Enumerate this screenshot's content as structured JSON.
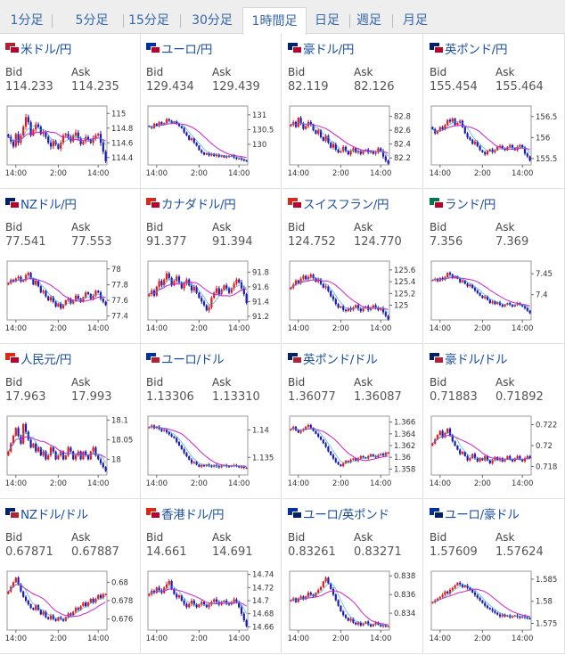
{
  "tabs": [
    {
      "label": "1分足",
      "active": false
    },
    {
      "label": "5分足",
      "active": false
    },
    {
      "label": "15分足",
      "active": false
    },
    {
      "label": "30分足",
      "active": false
    },
    {
      "label": "1時間足",
      "active": true
    },
    {
      "label": "日足",
      "active": false
    },
    {
      "label": "週足",
      "active": false
    },
    {
      "label": "月足",
      "active": false
    }
  ],
  "colors": {
    "up": "#e81818",
    "down": "#1a1ab8",
    "ma_slow": "#cc22cc",
    "ma_fast": "#2aa5d6",
    "link": "#1a4fa0"
  },
  "labels": {
    "bid": "Bid",
    "ask": "Ask"
  },
  "chart_data": [
    {
      "type": "candlestick",
      "pair": "米ドル/円",
      "flags": [
        "#b22234",
        "#bc002d"
      ],
      "bid": "114.233",
      "ask": "114.235",
      "x_ticks": [
        "14:00",
        "2:00",
        "14:00"
      ],
      "y_ticks": [
        "115",
        "114.8",
        "114.6",
        "114.4"
      ],
      "y_tick_values": [
        115,
        114.8,
        114.6,
        114.4
      ],
      "ylim": [
        114.3,
        115.1
      ],
      "close": [
        114.68,
        114.62,
        114.55,
        114.72,
        114.6,
        114.7,
        114.82,
        114.95,
        114.88,
        114.7,
        114.78,
        114.85,
        114.82,
        114.72,
        114.74,
        114.68,
        114.6,
        114.55,
        114.62,
        114.58,
        114.52,
        114.6,
        114.7,
        114.72,
        114.68,
        114.62,
        114.7,
        114.74,
        114.66,
        114.58,
        114.62,
        114.68,
        114.64,
        114.6,
        114.66,
        114.7,
        114.72,
        114.6,
        114.48,
        114.35
      ],
      "vol": 0.07
    },
    {
      "type": "candlestick",
      "pair": "ユーロ/円",
      "flags": [
        "#003399",
        "#bc002d"
      ],
      "bid": "129.434",
      "ask": "129.439",
      "x_ticks": [
        "14:00",
        "2:00",
        "14:00"
      ],
      "y_ticks": [
        "131",
        "130.5",
        "130"
      ],
      "y_tick_values": [
        131,
        130.5,
        130
      ],
      "ylim": [
        129.3,
        131.3
      ],
      "close": [
        130.6,
        130.55,
        130.7,
        130.62,
        130.75,
        130.68,
        130.72,
        130.85,
        130.8,
        130.72,
        130.78,
        130.7,
        130.62,
        130.55,
        130.4,
        130.3,
        130.15,
        130.2,
        130.05,
        129.95,
        129.8,
        129.72,
        129.65,
        129.7,
        129.62,
        129.68,
        129.6,
        129.65,
        129.58,
        129.62,
        129.55,
        129.6,
        129.58,
        129.62,
        129.55,
        129.5,
        129.52,
        129.48,
        129.45,
        129.43
      ],
      "vol": 0.08
    },
    {
      "type": "candlestick",
      "pair": "豪ドル/円",
      "flags": [
        "#012169",
        "#bc002d"
      ],
      "bid": "82.119",
      "ask": "82.126",
      "x_ticks": [
        "14:00",
        "2:00",
        "14:00"
      ],
      "y_ticks": [
        "82.8",
        "82.6",
        "82.4",
        "82.2"
      ],
      "y_tick_values": [
        82.8,
        82.6,
        82.4,
        82.2
      ],
      "ylim": [
        82.1,
        82.95
      ],
      "close": [
        82.68,
        82.72,
        82.65,
        82.78,
        82.7,
        82.62,
        82.66,
        82.72,
        82.68,
        82.6,
        82.55,
        82.6,
        82.5,
        82.45,
        82.52,
        82.42,
        82.35,
        82.4,
        82.32,
        82.28,
        82.3,
        82.36,
        82.3,
        82.25,
        82.3,
        82.34,
        82.28,
        82.3,
        82.26,
        82.3,
        82.32,
        82.28,
        82.3,
        82.26,
        82.28,
        82.34,
        82.3,
        82.22,
        82.16,
        82.12
      ],
      "vol": 0.05
    },
    {
      "type": "candlestick",
      "pair": "英ポンド/円",
      "flags": [
        "#012169",
        "#bc002d"
      ],
      "bid": "155.454",
      "ask": "155.464",
      "x_ticks": [
        "14:00",
        "2:00",
        "14:00"
      ],
      "y_ticks": [
        "156.5",
        "156",
        "155.5"
      ],
      "y_tick_values": [
        156.5,
        156,
        155.5
      ],
      "ylim": [
        155.35,
        156.75
      ],
      "close": [
        156.2,
        156.1,
        156.15,
        156.25,
        156.2,
        156.3,
        156.42,
        156.38,
        156.45,
        156.3,
        156.35,
        156.4,
        156.25,
        156.1,
        156.0,
        155.95,
        155.85,
        155.9,
        155.8,
        155.7,
        155.65,
        155.6,
        155.68,
        155.72,
        155.65,
        155.7,
        155.78,
        155.8,
        155.74,
        155.7,
        155.78,
        155.82,
        155.75,
        155.7,
        155.78,
        155.82,
        155.76,
        155.62,
        155.55,
        155.45
      ],
      "vol": 0.07
    },
    {
      "type": "candlestick",
      "pair": "NZドル/円",
      "flags": [
        "#012169",
        "#bc002d"
      ],
      "bid": "77.541",
      "ask": "77.553",
      "x_ticks": [
        "14:00",
        "2:00",
        "14:00"
      ],
      "y_ticks": [
        "78",
        "77.8",
        "77.6",
        "77.4"
      ],
      "y_tick_values": [
        78,
        77.8,
        77.6,
        77.4
      ],
      "ylim": [
        77.35,
        78.1
      ],
      "close": [
        77.82,
        77.86,
        77.84,
        77.88,
        77.9,
        77.84,
        77.86,
        77.92,
        77.95,
        77.88,
        77.8,
        77.85,
        77.78,
        77.7,
        77.72,
        77.65,
        77.6,
        77.64,
        77.58,
        77.52,
        77.56,
        77.5,
        77.54,
        77.6,
        77.62,
        77.56,
        77.6,
        77.66,
        77.62,
        77.58,
        77.64,
        77.7,
        77.68,
        77.62,
        77.66,
        77.72,
        77.7,
        77.62,
        77.58,
        77.54
      ],
      "vol": 0.04
    },
    {
      "type": "candlestick",
      "pair": "カナダドル/円",
      "flags": [
        "#d52b1e",
        "#bc002d"
      ],
      "bid": "91.377",
      "ask": "91.394",
      "x_ticks": [
        "14:00",
        "2:00",
        "14:00"
      ],
      "y_ticks": [
        "91.8",
        "91.6",
        "91.4",
        "91.2"
      ],
      "y_tick_values": [
        91.8,
        91.6,
        91.4,
        91.2
      ],
      "ylim": [
        91.15,
        91.95
      ],
      "close": [
        91.5,
        91.55,
        91.48,
        91.6,
        91.68,
        91.62,
        91.7,
        91.78,
        91.72,
        91.62,
        91.68,
        91.74,
        91.66,
        91.58,
        91.64,
        91.7,
        91.62,
        91.55,
        91.6,
        91.52,
        91.45,
        91.4,
        91.35,
        91.28,
        91.32,
        91.45,
        91.52,
        91.58,
        91.5,
        91.56,
        91.62,
        91.58,
        91.52,
        91.58,
        91.64,
        91.7,
        91.66,
        91.58,
        91.5,
        91.38
      ],
      "vol": 0.06
    },
    {
      "type": "candlestick",
      "pair": "スイスフラン/円",
      "flags": [
        "#d52b1e",
        "#bc002d"
      ],
      "bid": "124.752",
      "ask": "124.770",
      "x_ticks": [
        "14:00",
        "2:00",
        "14:00"
      ],
      "y_ticks": [
        "125.6",
        "125.4",
        "125.2",
        "125"
      ],
      "y_tick_values": [
        125.6,
        125.4,
        125.2,
        125
      ],
      "ylim": [
        124.75,
        125.75
      ],
      "close": [
        125.3,
        125.35,
        125.42,
        125.38,
        125.45,
        125.5,
        125.44,
        125.48,
        125.52,
        125.46,
        125.4,
        125.44,
        125.36,
        125.3,
        125.32,
        125.24,
        125.15,
        125.1,
        125.02,
        124.96,
        124.98,
        124.92,
        124.9,
        124.95,
        124.92,
        124.96,
        125.0,
        124.94,
        124.9,
        124.95,
        124.98,
        124.92,
        124.96,
        125.0,
        124.96,
        124.92,
        124.95,
        124.88,
        124.82,
        124.76
      ],
      "vol": 0.06
    },
    {
      "type": "candlestick",
      "pair": "ランド/円",
      "flags": [
        "#007a4d",
        "#bc002d"
      ],
      "bid": "7.356",
      "ask": "7.369",
      "x_ticks": [
        "14:00",
        "2:00",
        "14:00"
      ],
      "y_ticks": [
        "7.45",
        "7.4"
      ],
      "y_tick_values": [
        7.45,
        7.4
      ],
      "ylim": [
        7.34,
        7.48
      ],
      "close": [
        7.435,
        7.438,
        7.432,
        7.44,
        7.436,
        7.442,
        7.452,
        7.448,
        7.44,
        7.444,
        7.438,
        7.43,
        7.434,
        7.426,
        7.42,
        7.424,
        7.416,
        7.41,
        7.404,
        7.398,
        7.392,
        7.396,
        7.388,
        7.38,
        7.384,
        7.378,
        7.382,
        7.376,
        7.372,
        7.376,
        7.38,
        7.376,
        7.372,
        7.376,
        7.38,
        7.376,
        7.372,
        7.368,
        7.362,
        7.356
      ],
      "vol": 0.006
    },
    {
      "type": "candlestick",
      "pair": "人民元/円",
      "flags": [
        "#de2910",
        "#bc002d"
      ],
      "bid": "17.963",
      "ask": "17.993",
      "x_ticks": [
        "14:00",
        "2:00",
        "14:00"
      ],
      "y_ticks": [
        "18.1",
        "18.05",
        "18"
      ],
      "y_tick_values": [
        18.1,
        18.05,
        18
      ],
      "ylim": [
        17.96,
        18.11
      ],
      "close": [
        18.02,
        18.04,
        18.06,
        18.08,
        18.06,
        18.04,
        18.09,
        18.07,
        18.05,
        18.03,
        18.04,
        18.02,
        18.03,
        18.01,
        18.02,
        18.0,
        18.01,
        18.03,
        18.02,
        18.0,
        18.01,
        18.02,
        18.0,
        18.01,
        18.03,
        18.02,
        18.0,
        18.01,
        18.02,
        18.0,
        18.02,
        18.01,
        18.0,
        18.02,
        18.03,
        18.01,
        18.0,
        17.99,
        17.98,
        17.97
      ],
      "vol": 0.008
    },
    {
      "type": "candlestick",
      "pair": "ユーロ/ドル",
      "flags": [
        "#003399",
        "#b22234"
      ],
      "bid": "1.13306",
      "ask": "1.13310",
      "x_ticks": [
        "14:00",
        "2:00",
        "14:00"
      ],
      "y_ticks": [
        "1.14",
        "1.135"
      ],
      "y_tick_values": [
        1.14,
        1.135
      ],
      "ylim": [
        1.1318,
        1.1425
      ],
      "close": [
        1.1405,
        1.1408,
        1.1403,
        1.1406,
        1.1402,
        1.1398,
        1.14,
        1.1396,
        1.1392,
        1.1388,
        1.1385,
        1.1378,
        1.1372,
        1.1365,
        1.1358,
        1.1352,
        1.1346,
        1.134,
        1.1342,
        1.1337,
        1.1333,
        1.1336,
        1.1334,
        1.1337,
        1.1335,
        1.1333,
        1.1336,
        1.1334,
        1.1332,
        1.1335,
        1.1336,
        1.1334,
        1.1333,
        1.1335,
        1.1336,
        1.1334,
        1.1332,
        1.1333,
        1.1331,
        1.1331
      ],
      "vol": 0.0005
    },
    {
      "type": "candlestick",
      "pair": "英ポンド/ドル",
      "flags": [
        "#012169",
        "#b22234"
      ],
      "bid": "1.36077",
      "ask": "1.36087",
      "x_ticks": [
        "14:00",
        "2:00",
        "14:00"
      ],
      "y_ticks": [
        "1.366",
        "1.364",
        "1.362",
        "1.36",
        "1.358"
      ],
      "y_tick_values": [
        1.366,
        1.364,
        1.362,
        1.36,
        1.358
      ],
      "ylim": [
        1.357,
        1.367
      ],
      "close": [
        1.3648,
        1.3652,
        1.3646,
        1.3642,
        1.3645,
        1.3648,
        1.3652,
        1.3655,
        1.365,
        1.3645,
        1.364,
        1.3635,
        1.363,
        1.3624,
        1.3618,
        1.361,
        1.3604,
        1.3598,
        1.3592,
        1.3588,
        1.3585,
        1.359,
        1.3594,
        1.3592,
        1.3596,
        1.3598,
        1.3594,
        1.3598,
        1.3602,
        1.36,
        1.3598,
        1.3602,
        1.3605,
        1.3602,
        1.36,
        1.3604,
        1.3606,
        1.3603,
        1.3608,
        1.3608
      ],
      "vol": 0.0004
    },
    {
      "type": "candlestick",
      "pair": "豪ドル/ドル",
      "flags": [
        "#012169",
        "#b22234"
      ],
      "bid": "0.71883",
      "ask": "0.71892",
      "x_ticks": [
        "14:00",
        "2:00",
        "14:00"
      ],
      "y_ticks": [
        "0.722",
        "0.72",
        "0.718"
      ],
      "y_tick_values": [
        0.722,
        0.72,
        0.718
      ],
      "ylim": [
        0.7172,
        0.7228
      ],
      "close": [
        0.7202,
        0.7206,
        0.721,
        0.7214,
        0.7208,
        0.7212,
        0.7216,
        0.721,
        0.7204,
        0.72,
        0.7196,
        0.7192,
        0.7194,
        0.719,
        0.7186,
        0.7188,
        0.7192,
        0.7188,
        0.7185,
        0.7188,
        0.7186,
        0.719,
        0.7186,
        0.7183,
        0.7186,
        0.7189,
        0.7186,
        0.7188,
        0.7185,
        0.7187,
        0.719,
        0.7187,
        0.7185,
        0.7188,
        0.719,
        0.7187,
        0.7185,
        0.7188,
        0.719,
        0.7188
      ],
      "vol": 0.00025
    },
    {
      "type": "candlestick",
      "pair": "NZドル/ドル",
      "flags": [
        "#012169",
        "#b22234"
      ],
      "bid": "0.67871",
      "ask": "0.67887",
      "x_ticks": [
        "14:00",
        "2:00",
        "14:00"
      ],
      "y_ticks": [
        "0.68",
        "0.678",
        "0.676"
      ],
      "y_tick_values": [
        0.68,
        0.678,
        0.676
      ],
      "ylim": [
        0.6748,
        0.6812
      ],
      "close": [
        0.679,
        0.6795,
        0.68,
        0.6805,
        0.6798,
        0.679,
        0.6784,
        0.678,
        0.6776,
        0.6772,
        0.677,
        0.6775,
        0.677,
        0.6765,
        0.6768,
        0.6762,
        0.676,
        0.6764,
        0.676,
        0.6758,
        0.6762,
        0.676,
        0.6758,
        0.6762,
        0.6766,
        0.6764,
        0.6768,
        0.6772,
        0.677,
        0.6774,
        0.6778,
        0.6774,
        0.6778,
        0.6782,
        0.6778,
        0.6782,
        0.6786,
        0.6783,
        0.6787,
        0.6787
      ],
      "vol": 0.0003
    },
    {
      "type": "candlestick",
      "pair": "香港ドル/円",
      "flags": [
        "#de2910",
        "#bc002d"
      ],
      "bid": "14.661",
      "ask": "14.691",
      "x_ticks": [
        "14:00",
        "2:00",
        "14:00"
      ],
      "y_ticks": [
        "14.74",
        "14.72",
        "14.7",
        "14.68",
        "14.66"
      ],
      "y_tick_values": [
        14.74,
        14.72,
        14.7,
        14.68,
        14.66
      ],
      "ylim": [
        14.655,
        14.745
      ],
      "close": [
        14.71,
        14.715,
        14.712,
        14.72,
        14.716,
        14.712,
        14.72,
        14.725,
        14.73,
        14.718,
        14.71,
        14.705,
        14.708,
        14.7,
        14.695,
        14.69,
        14.695,
        14.7,
        14.694,
        14.69,
        14.694,
        14.698,
        14.694,
        14.69,
        14.694,
        14.698,
        14.702,
        14.698,
        14.694,
        14.698,
        14.7,
        14.696,
        14.694,
        14.698,
        14.702,
        14.698,
        14.69,
        14.68,
        14.67,
        14.661
      ],
      "vol": 0.006
    },
    {
      "type": "candlestick",
      "pair": "ユーロ/英ポンド",
      "flags": [
        "#003399",
        "#012169"
      ],
      "bid": "0.83261",
      "ask": "0.83271",
      "x_ticks": [
        "14:00",
        "2:00",
        "14:00"
      ],
      "y_ticks": [
        "0.838",
        "0.836",
        "0.834"
      ],
      "y_tick_values": [
        0.838,
        0.836,
        0.834
      ],
      "ylim": [
        0.8322,
        0.8385
      ],
      "close": [
        0.8354,
        0.8356,
        0.8352,
        0.8356,
        0.8358,
        0.8355,
        0.8358,
        0.8362,
        0.836,
        0.8358,
        0.8362,
        0.8365,
        0.8368,
        0.8374,
        0.8378,
        0.8372,
        0.8366,
        0.836,
        0.8354,
        0.8348,
        0.8342,
        0.8338,
        0.8335,
        0.8332,
        0.8334,
        0.833,
        0.8328,
        0.833,
        0.8327,
        0.8329,
        0.8331,
        0.8328,
        0.8326,
        0.8328,
        0.833,
        0.8328,
        0.8326,
        0.8327,
        0.8326,
        0.8326
      ],
      "vol": 0.0003
    },
    {
      "type": "candlestick",
      "pair": "ユーロ/豪ドル",
      "flags": [
        "#003399",
        "#012169"
      ],
      "bid": "1.57609",
      "ask": "1.57624",
      "x_ticks": [
        "14:00",
        "2:00",
        "14:00"
      ],
      "y_ticks": [
        "1.585",
        "1.58",
        "1.575"
      ],
      "y_tick_values": [
        1.585,
        1.58,
        1.575
      ],
      "ylim": [
        1.5735,
        1.5868
      ],
      "close": [
        1.5798,
        1.5802,
        1.5806,
        1.581,
        1.5815,
        1.5822,
        1.5818,
        1.5826,
        1.583,
        1.5836,
        1.5842,
        1.5838,
        1.5832,
        1.5836,
        1.583,
        1.5826,
        1.582,
        1.5814,
        1.5808,
        1.5802,
        1.5796,
        1.579,
        1.5785,
        1.5782,
        1.5778,
        1.5774,
        1.577,
        1.5766,
        1.577,
        1.5766,
        1.5768,
        1.5764,
        1.5766,
        1.5768,
        1.5765,
        1.5763,
        1.5766,
        1.5764,
        1.5762,
        1.5761
      ],
      "vol": 0.0007
    }
  ]
}
